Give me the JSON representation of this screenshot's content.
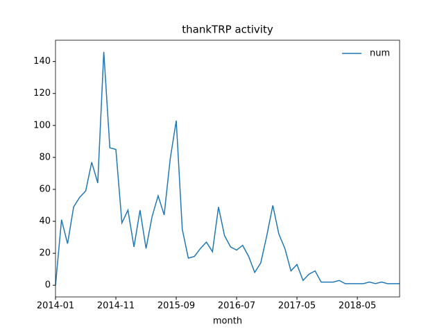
{
  "chart_data": {
    "type": "line",
    "title": "thankTRP activity",
    "x_label": "month",
    "categories": [
      "2014-01",
      null,
      null,
      null,
      null,
      null,
      null,
      null,
      null,
      null,
      "2014-11",
      null,
      null,
      null,
      null,
      null,
      null,
      null,
      null,
      null,
      "2015-09",
      null,
      null,
      null,
      null,
      null,
      null,
      null,
      null,
      null,
      "2016-07",
      null,
      null,
      null,
      null,
      null,
      null,
      null,
      null,
      null,
      "2017-05",
      null,
      null,
      null,
      null,
      null,
      null,
      null,
      null,
      null,
      "2018-05",
      null,
      null,
      null,
      null,
      null,
      null,
      null
    ],
    "series": [
      {
        "name": "num",
        "color": "#1f77b4",
        "values": [
          0,
          41,
          26,
          49,
          55,
          59,
          77,
          64,
          146,
          86,
          85,
          39,
          47,
          24,
          47,
          23,
          43,
          56,
          44,
          79,
          103,
          35,
          17,
          18,
          23,
          27,
          21,
          49,
          31,
          24,
          22,
          25,
          18,
          8,
          14,
          31,
          50,
          32,
          23,
          9,
          13,
          3,
          7,
          9,
          2,
          2,
          2,
          3,
          1,
          1,
          1,
          1,
          2,
          1,
          2,
          1,
          1,
          1
        ]
      }
    ],
    "ylim": [
      -7.3,
      153.3
    ],
    "yticks": [
      0,
      20,
      40,
      60,
      80,
      100,
      120,
      140
    ],
    "legend": "upper right"
  }
}
